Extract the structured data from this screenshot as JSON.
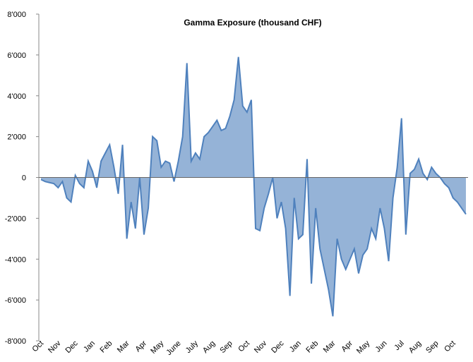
{
  "chart_data": {
    "type": "area",
    "title": "Gamma Exposure  (thousand CHF)",
    "categories": [
      "Oct",
      null,
      null,
      null,
      "Nov",
      null,
      null,
      null,
      "Dec",
      null,
      null,
      null,
      "Jan",
      null,
      null,
      null,
      "Feb",
      null,
      null,
      null,
      "Mar",
      null,
      null,
      null,
      "Apr",
      null,
      null,
      null,
      "May",
      null,
      null,
      null,
      "June",
      null,
      null,
      null,
      "July",
      null,
      null,
      null,
      "Aug",
      null,
      null,
      null,
      "Sep",
      null,
      null,
      null,
      "Oct",
      null,
      null,
      null,
      "Nov",
      null,
      null,
      null,
      "Dec",
      null,
      null,
      null,
      "Jan",
      null,
      null,
      null,
      "Feb",
      null,
      null,
      null,
      "Mar",
      null,
      null,
      null,
      "Apr",
      null,
      null,
      null,
      "May",
      null,
      null,
      null,
      "Jun",
      null,
      null,
      null,
      "Jul",
      null,
      null,
      null,
      "Aug",
      null,
      null,
      null,
      "Sep",
      null,
      null,
      null,
      "Oct",
      null,
      null,
      null
    ],
    "values": [
      -100,
      -200,
      -250,
      -300,
      -500,
      -200,
      -1000,
      -1200,
      100,
      -300,
      -500,
      800,
      300,
      -500,
      800,
      1200,
      1600,
      500,
      -800,
      1600,
      -3000,
      -1200,
      -2500,
      0,
      -2800,
      -1500,
      2000,
      1800,
      500,
      800,
      700,
      -200,
      800,
      2000,
      5600,
      800,
      1200,
      900,
      2000,
      2200,
      2500,
      2800,
      2300,
      2400,
      3000,
      3800,
      5900,
      3500,
      3200,
      3800,
      -2500,
      -2600,
      -1500,
      -800,
      0,
      -2000,
      -1200,
      -2500,
      -5800,
      -1000,
      -3000,
      -2800,
      900,
      -5200,
      -1500,
      -3500,
      -4500,
      -5500,
      -6800,
      -3000,
      -4000,
      -4500,
      -4000,
      -3500,
      -4700,
      -3800,
      -3500,
      -2500,
      -3000,
      -1500,
      -2500,
      -4100,
      -1000,
      500,
      2900,
      -2800,
      200,
      400,
      900,
      200,
      -100,
      500,
      200,
      0,
      -300,
      -500,
      -1000,
      -1200,
      -1500,
      -1800
    ],
    "color": "#4f81bd",
    "fill": "#95b3d7",
    "ylim": [
      -8000,
      8000
    ],
    "yticks": [
      {
        "value": -8000,
        "label": "-8'000"
      },
      {
        "value": -6000,
        "label": "-6'000"
      },
      {
        "value": -4000,
        "label": "-4'000"
      },
      {
        "value": -2000,
        "label": "-2'000"
      },
      0,
      {
        "value": 2000,
        "label": "2'000"
      },
      {
        "value": 4000,
        "label": "4'000"
      },
      {
        "value": 6000,
        "label": "6'000"
      },
      {
        "value": 8000,
        "label": "8'000"
      }
    ]
  }
}
